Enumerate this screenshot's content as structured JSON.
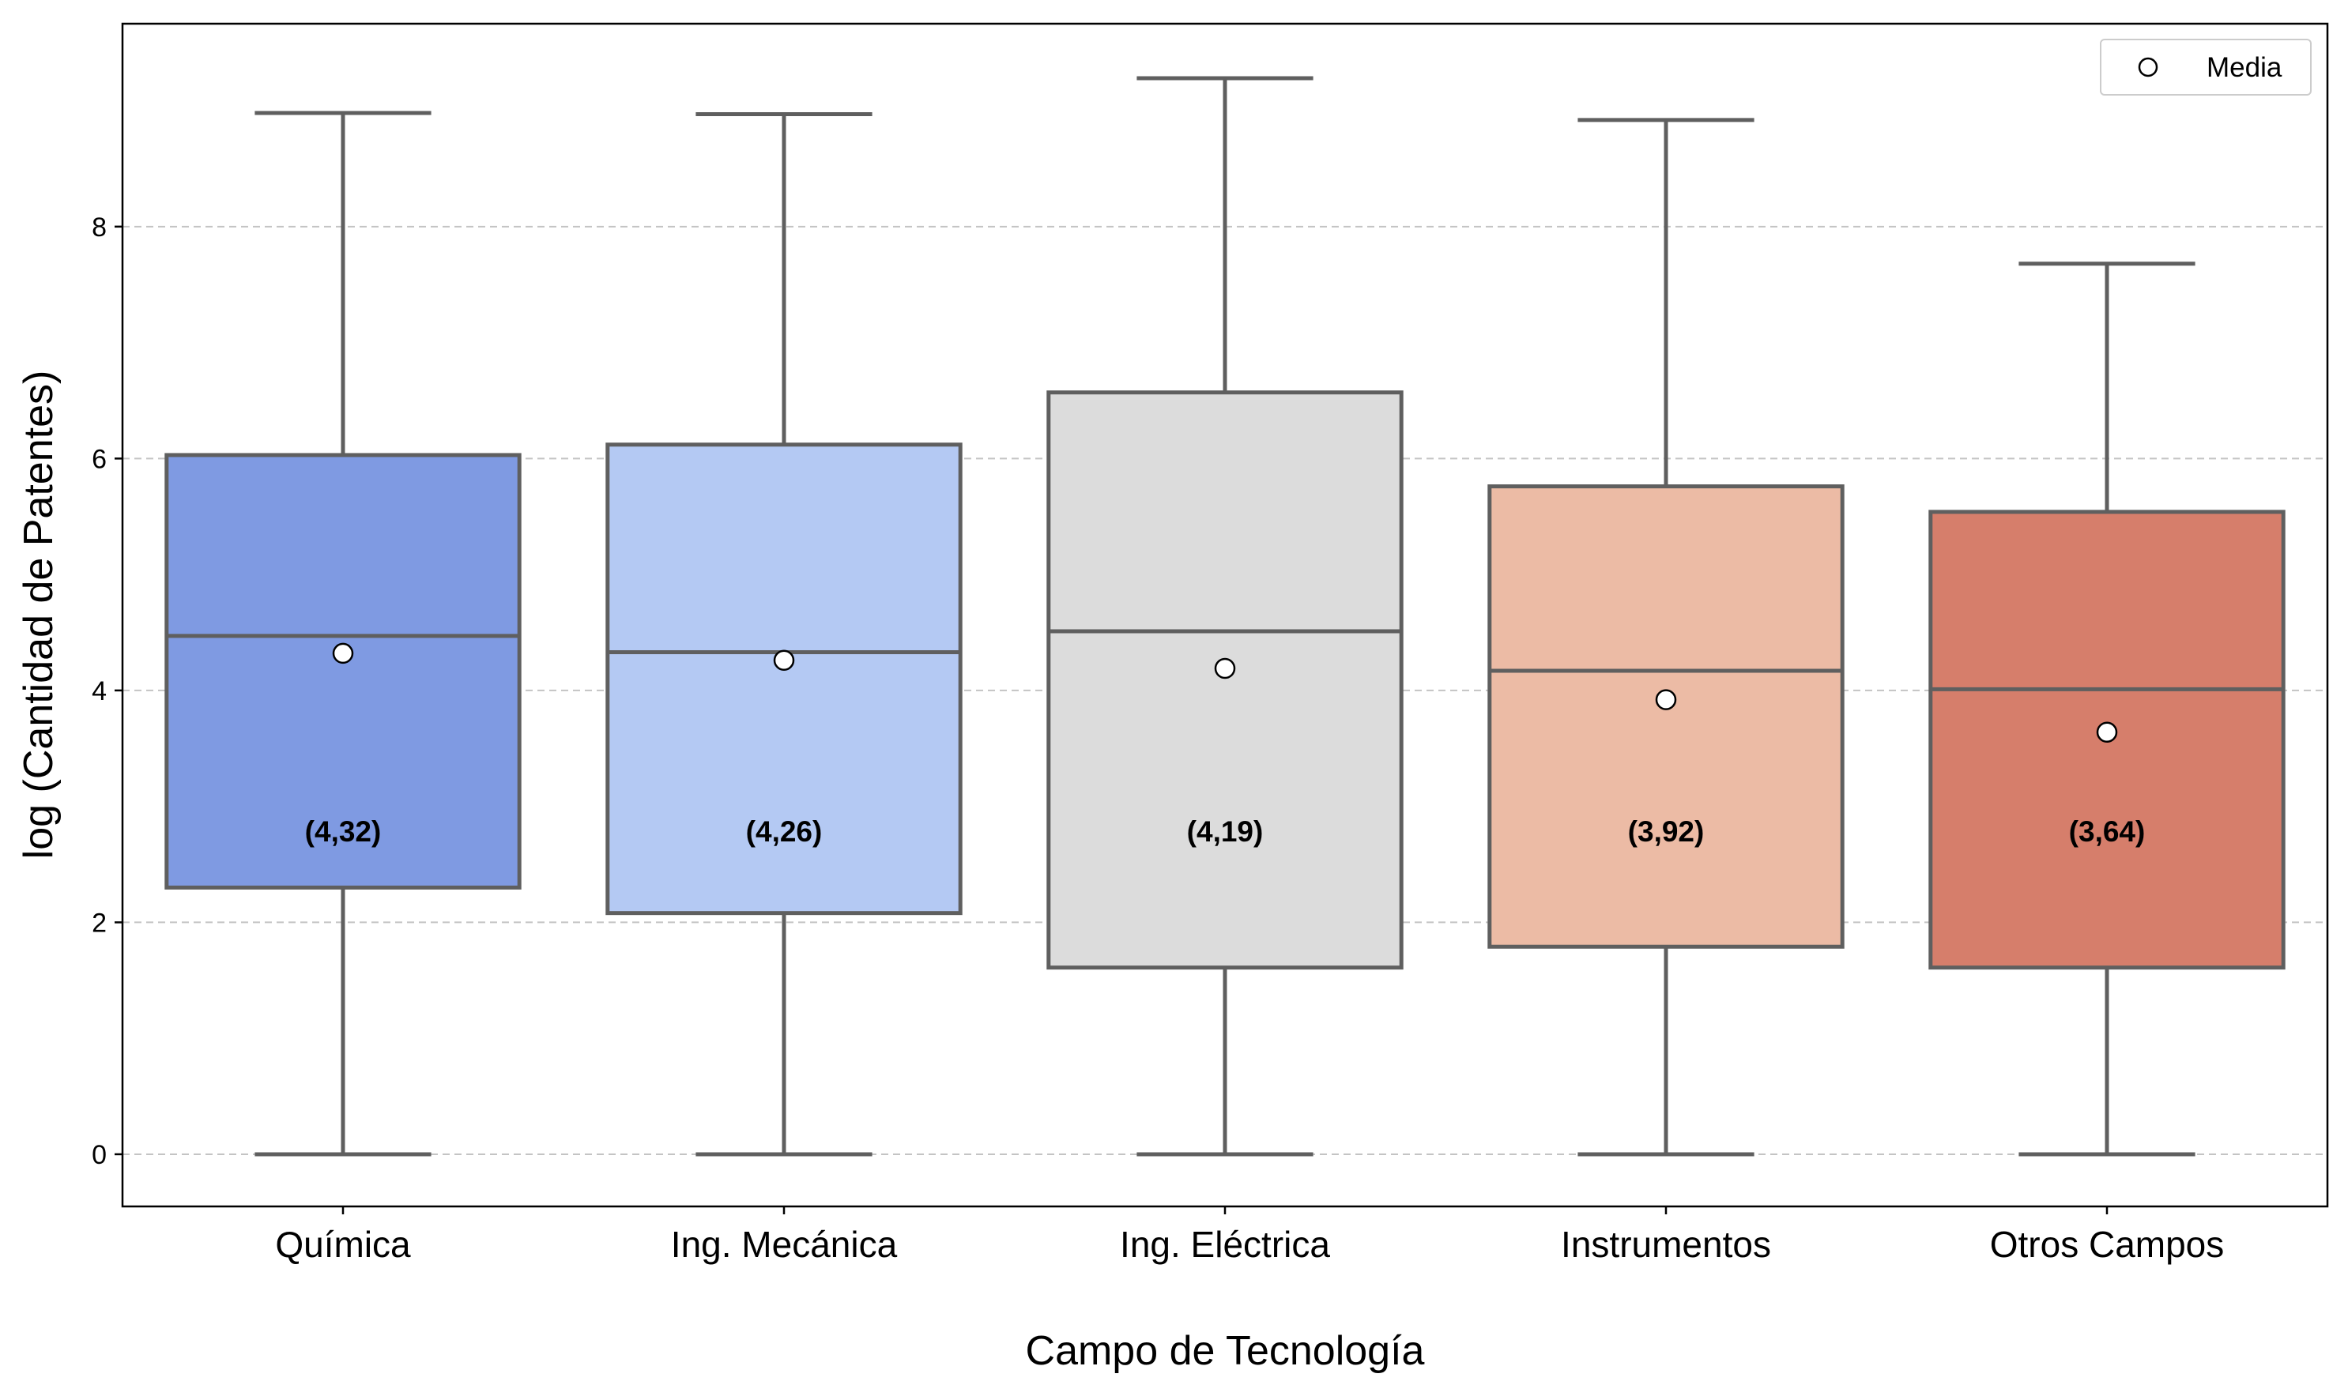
{
  "chart_data": {
    "type": "box",
    "xlabel": "Campo de Tecnología",
    "ylabel": "log (Cantidad de Patentes)",
    "ylim": [
      -0.45,
      9.75
    ],
    "yticks": [
      0,
      2,
      4,
      6,
      8
    ],
    "grid": "horizontal dashed",
    "legend": {
      "position": "top-right",
      "entries": [
        "Media"
      ]
    },
    "categories": [
      "Química",
      "Ing. Mecánica",
      "Ing. Eléctrica",
      "Instrumentos",
      "Otros Campos"
    ],
    "boxes": [
      {
        "category": "Química",
        "min": 0,
        "q1": 2.3,
        "median": 4.47,
        "q3": 6.03,
        "max": 8.98,
        "mean": 4.32,
        "mean_label": "(4,32)",
        "color": "#7f9ae2"
      },
      {
        "category": "Ing. Mecánica",
        "min": 0,
        "q1": 2.08,
        "median": 4.33,
        "q3": 6.12,
        "max": 8.97,
        "mean": 4.26,
        "mean_label": "(4,26)",
        "color": "#b4c9f3"
      },
      {
        "category": "Ing. Eléctrica",
        "min": 0,
        "q1": 1.61,
        "median": 4.51,
        "q3": 6.57,
        "max": 9.28,
        "mean": 4.19,
        "mean_label": "(4,19)",
        "color": "#dcdcdc"
      },
      {
        "category": "Instrumentos",
        "min": 0,
        "q1": 1.79,
        "median": 4.17,
        "q3": 5.76,
        "max": 8.92,
        "mean": 3.92,
        "mean_label": "(3,92)",
        "color": "#ecbba5"
      },
      {
        "category": "Otros Campos",
        "min": 0,
        "q1": 1.61,
        "median": 4.01,
        "q3": 5.54,
        "max": 7.68,
        "mean": 3.64,
        "mean_label": "(3,64)",
        "color": "#d67e6b"
      }
    ]
  }
}
